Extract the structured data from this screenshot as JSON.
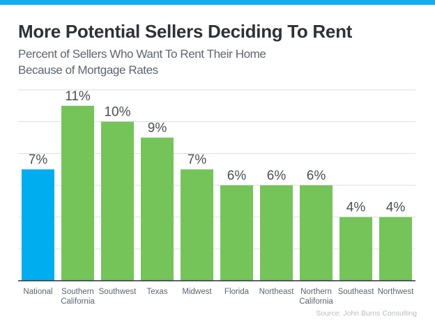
{
  "header": {
    "title": "More Potential Sellers Deciding To Rent",
    "subtitle_line1": "Percent of Sellers Who Want To Rent Their Home",
    "subtitle_line2": "Because of Mortgage Rates"
  },
  "source": "Source: John Burns Consulting",
  "colors": {
    "accent": "#14aef0",
    "national": "#00adef",
    "region": "#75c45a",
    "axis": "#2d3238",
    "grid": "#dddddd"
  },
  "chart_data": {
    "type": "bar",
    "title": "More Potential Sellers Deciding To Rent",
    "subtitle": "Percent of Sellers Who Want To Rent Their Home Because of Mortgage Rates",
    "xlabel": "",
    "ylabel": "",
    "categories": [
      "National",
      "Southern California",
      "Southwest",
      "Texas",
      "Midwest",
      "Florida",
      "Northeast",
      "Northern California",
      "Southeast",
      "Northwest"
    ],
    "values": [
      7,
      11,
      10,
      9,
      7,
      6,
      6,
      6,
      4,
      4
    ],
    "labels": [
      "7%",
      "11%",
      "10%",
      "9%",
      "7%",
      "6%",
      "6%",
      "6%",
      "4%",
      "4%"
    ],
    "highlight": [
      "National"
    ],
    "ylim": [
      0,
      12
    ],
    "ytick_step": 2,
    "grid": true,
    "legend": "none"
  }
}
